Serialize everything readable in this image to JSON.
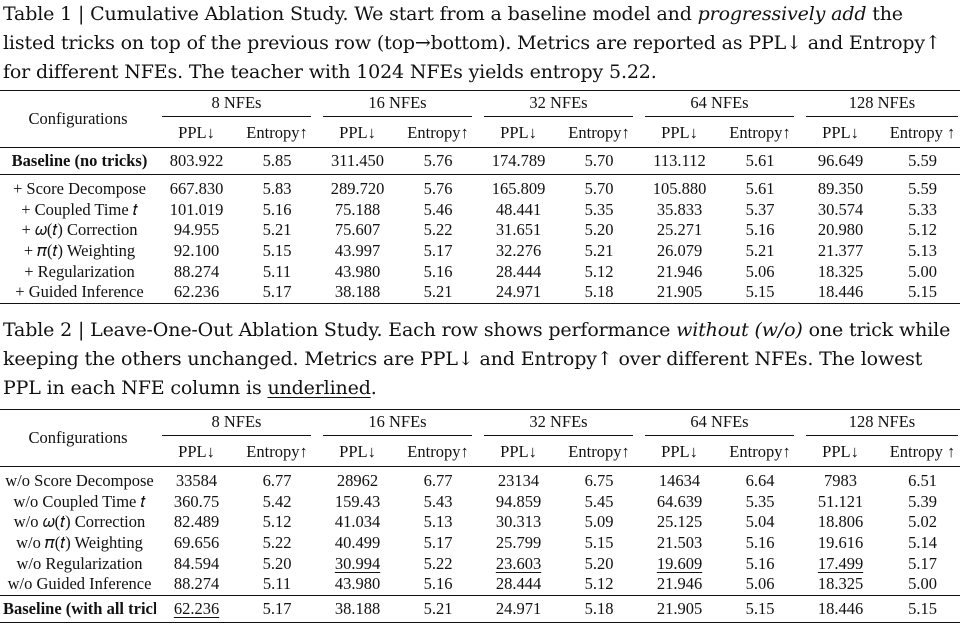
{
  "table1": {
    "caption": {
      "p1": "Table 1 | Cumulative Ablation Study. We start from a baseline model and ",
      "em": "progressively add",
      "p2": " the listed tricks on top of the previous row (top→bottom). Metrics are reported as PPL↓ and Entropy↑ for different NFEs. The teacher with 1024 NFEs yields entropy 5.22."
    },
    "config_header": "Configurations",
    "groups": [
      "8 NFEs",
      "16 NFEs",
      "32 NFEs",
      "64 NFEs",
      "128 NFEs"
    ],
    "sub_ppl": "PPL↓",
    "sub_ent": "Entropy↑",
    "sub_ent_last": "Entropy ↑",
    "baseline": {
      "label": "Baseline (no tricks)",
      "cells": [
        "803.922",
        "5.85",
        "311.450",
        "5.76",
        "174.789",
        "5.70",
        "113.112",
        "5.61",
        "96.649",
        "5.59"
      ]
    },
    "rows": [
      {
        "label": "+ Score Decompose",
        "cells": [
          "667.830",
          "5.83",
          "289.720",
          "5.76",
          "165.809",
          "5.70",
          "105.880",
          "5.61",
          "89.350",
          "5.59"
        ]
      },
      {
        "label": "+ Coupled Time 𝑡",
        "cells": [
          "101.019",
          "5.16",
          "75.188",
          "5.46",
          "48.441",
          "5.35",
          "35.833",
          "5.37",
          "30.574",
          "5.33"
        ]
      },
      {
        "label": "+ 𝜔(𝑡) Correction",
        "cells": [
          "94.955",
          "5.21",
          "75.607",
          "5.22",
          "31.651",
          "5.20",
          "25.271",
          "5.16",
          "20.980",
          "5.12"
        ]
      },
      {
        "label": "+ 𝜋(𝑡) Weighting",
        "cells": [
          "92.100",
          "5.15",
          "43.997",
          "5.17",
          "32.276",
          "5.21",
          "26.079",
          "5.21",
          "21.377",
          "5.13"
        ]
      },
      {
        "label": "+ Regularization",
        "cells": [
          "88.274",
          "5.11",
          "43.980",
          "5.16",
          "28.444",
          "5.12",
          "21.946",
          "5.06",
          "18.325",
          "5.00"
        ]
      },
      {
        "label": "+ Guided Inference",
        "cells": [
          "62.236",
          "5.17",
          "38.188",
          "5.21",
          "24.971",
          "5.18",
          "21.905",
          "5.15",
          "18.446",
          "5.15"
        ]
      }
    ]
  },
  "table2": {
    "caption": {
      "p1": "Table 2 | Leave-One-Out Ablation Study. Each row shows performance ",
      "em": "without (w/o)",
      "p2": " one trick while keeping the others unchanged. Metrics are PPL↓ and Entropy↑ over different NFEs. The lowest PPL in each NFE column is ",
      "ul": "underlined",
      "p3": "."
    },
    "config_header": "Configurations",
    "groups": [
      "8 NFEs",
      "16 NFEs",
      "32 NFEs",
      "64 NFEs",
      "128 NFEs"
    ],
    "sub_ppl": "PPL↓",
    "sub_ent": "Entropy↑",
    "sub_ent_last": "Entropy ↑",
    "rows": [
      {
        "label": "w/o Score Decompose",
        "cells": [
          "33584",
          "6.77",
          "28962",
          "6.77",
          "23134",
          "6.75",
          "14634",
          "6.64",
          "7983",
          "6.51"
        ]
      },
      {
        "label": "w/o Coupled Time 𝑡",
        "cells": [
          "360.75",
          "5.42",
          "159.43",
          "5.43",
          "94.859",
          "5.45",
          "64.639",
          "5.35",
          "51.121",
          "5.39"
        ]
      },
      {
        "label": "w/o 𝜔(𝑡) Correction",
        "cells": [
          "82.489",
          "5.12",
          "41.034",
          "5.13",
          "30.313",
          "5.09",
          "25.125",
          "5.04",
          "18.806",
          "5.02"
        ]
      },
      {
        "label": "w/o 𝜋(𝑡) Weighting",
        "cells": [
          "69.656",
          "5.22",
          "40.499",
          "5.17",
          "25.799",
          "5.15",
          "21.503",
          "5.16",
          "19.616",
          "5.14"
        ]
      },
      {
        "label": "w/o Regularization",
        "cells": [
          "84.594",
          "5.20",
          "30.994",
          "5.22",
          "23.603",
          "5.20",
          "19.609",
          "5.16",
          "17.499",
          "5.17"
        ]
      },
      {
        "label": "w/o Guided Inference",
        "cells": [
          "88.274",
          "5.11",
          "43.980",
          "5.16",
          "28.444",
          "5.12",
          "21.946",
          "5.06",
          "18.325",
          "5.00"
        ]
      }
    ],
    "baseline": {
      "label": "Baseline (with all tricks)",
      "cells": [
        "62.236",
        "5.17",
        "38.188",
        "5.21",
        "24.971",
        "5.18",
        "21.905",
        "5.15",
        "18.446",
        "5.15"
      ]
    }
  }
}
